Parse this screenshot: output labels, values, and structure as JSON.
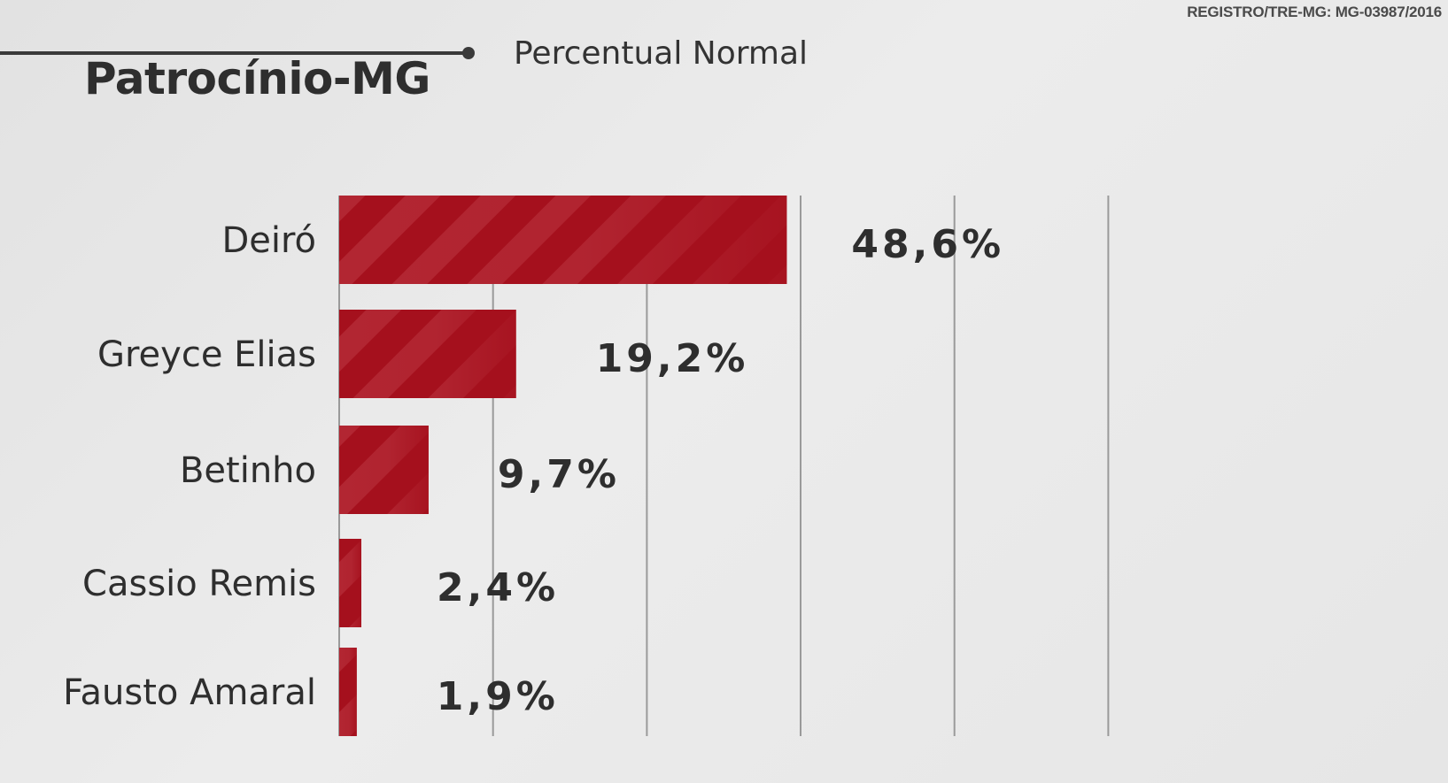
{
  "header": {
    "registro": "REGISTRO/TRE-MG: MG-03987/2016",
    "title": "Patrocínio-MG",
    "subtitle": "Percentual Normal"
  },
  "colors": {
    "bar": "#a5101d",
    "bar_stripe": "#b52a36",
    "grid": "#9a9a9a",
    "text": "#2e2e2e"
  },
  "chart_data": {
    "type": "bar",
    "orientation": "horizontal",
    "categories": [
      "Deiró",
      "Greyce Elias",
      "Betinho",
      "Cassio Remis",
      "Fausto Amaral"
    ],
    "values": [
      48.6,
      19.2,
      9.7,
      2.4,
      1.9
    ],
    "value_labels": [
      "48,6%",
      "19,2%",
      "9,7%",
      "2,4%",
      "1,9%"
    ],
    "title": "Patrocínio-MG",
    "subtitle": "Percentual Normal",
    "xlim": [
      0,
      100
    ],
    "grid": true,
    "grid_step": 16.7
  }
}
